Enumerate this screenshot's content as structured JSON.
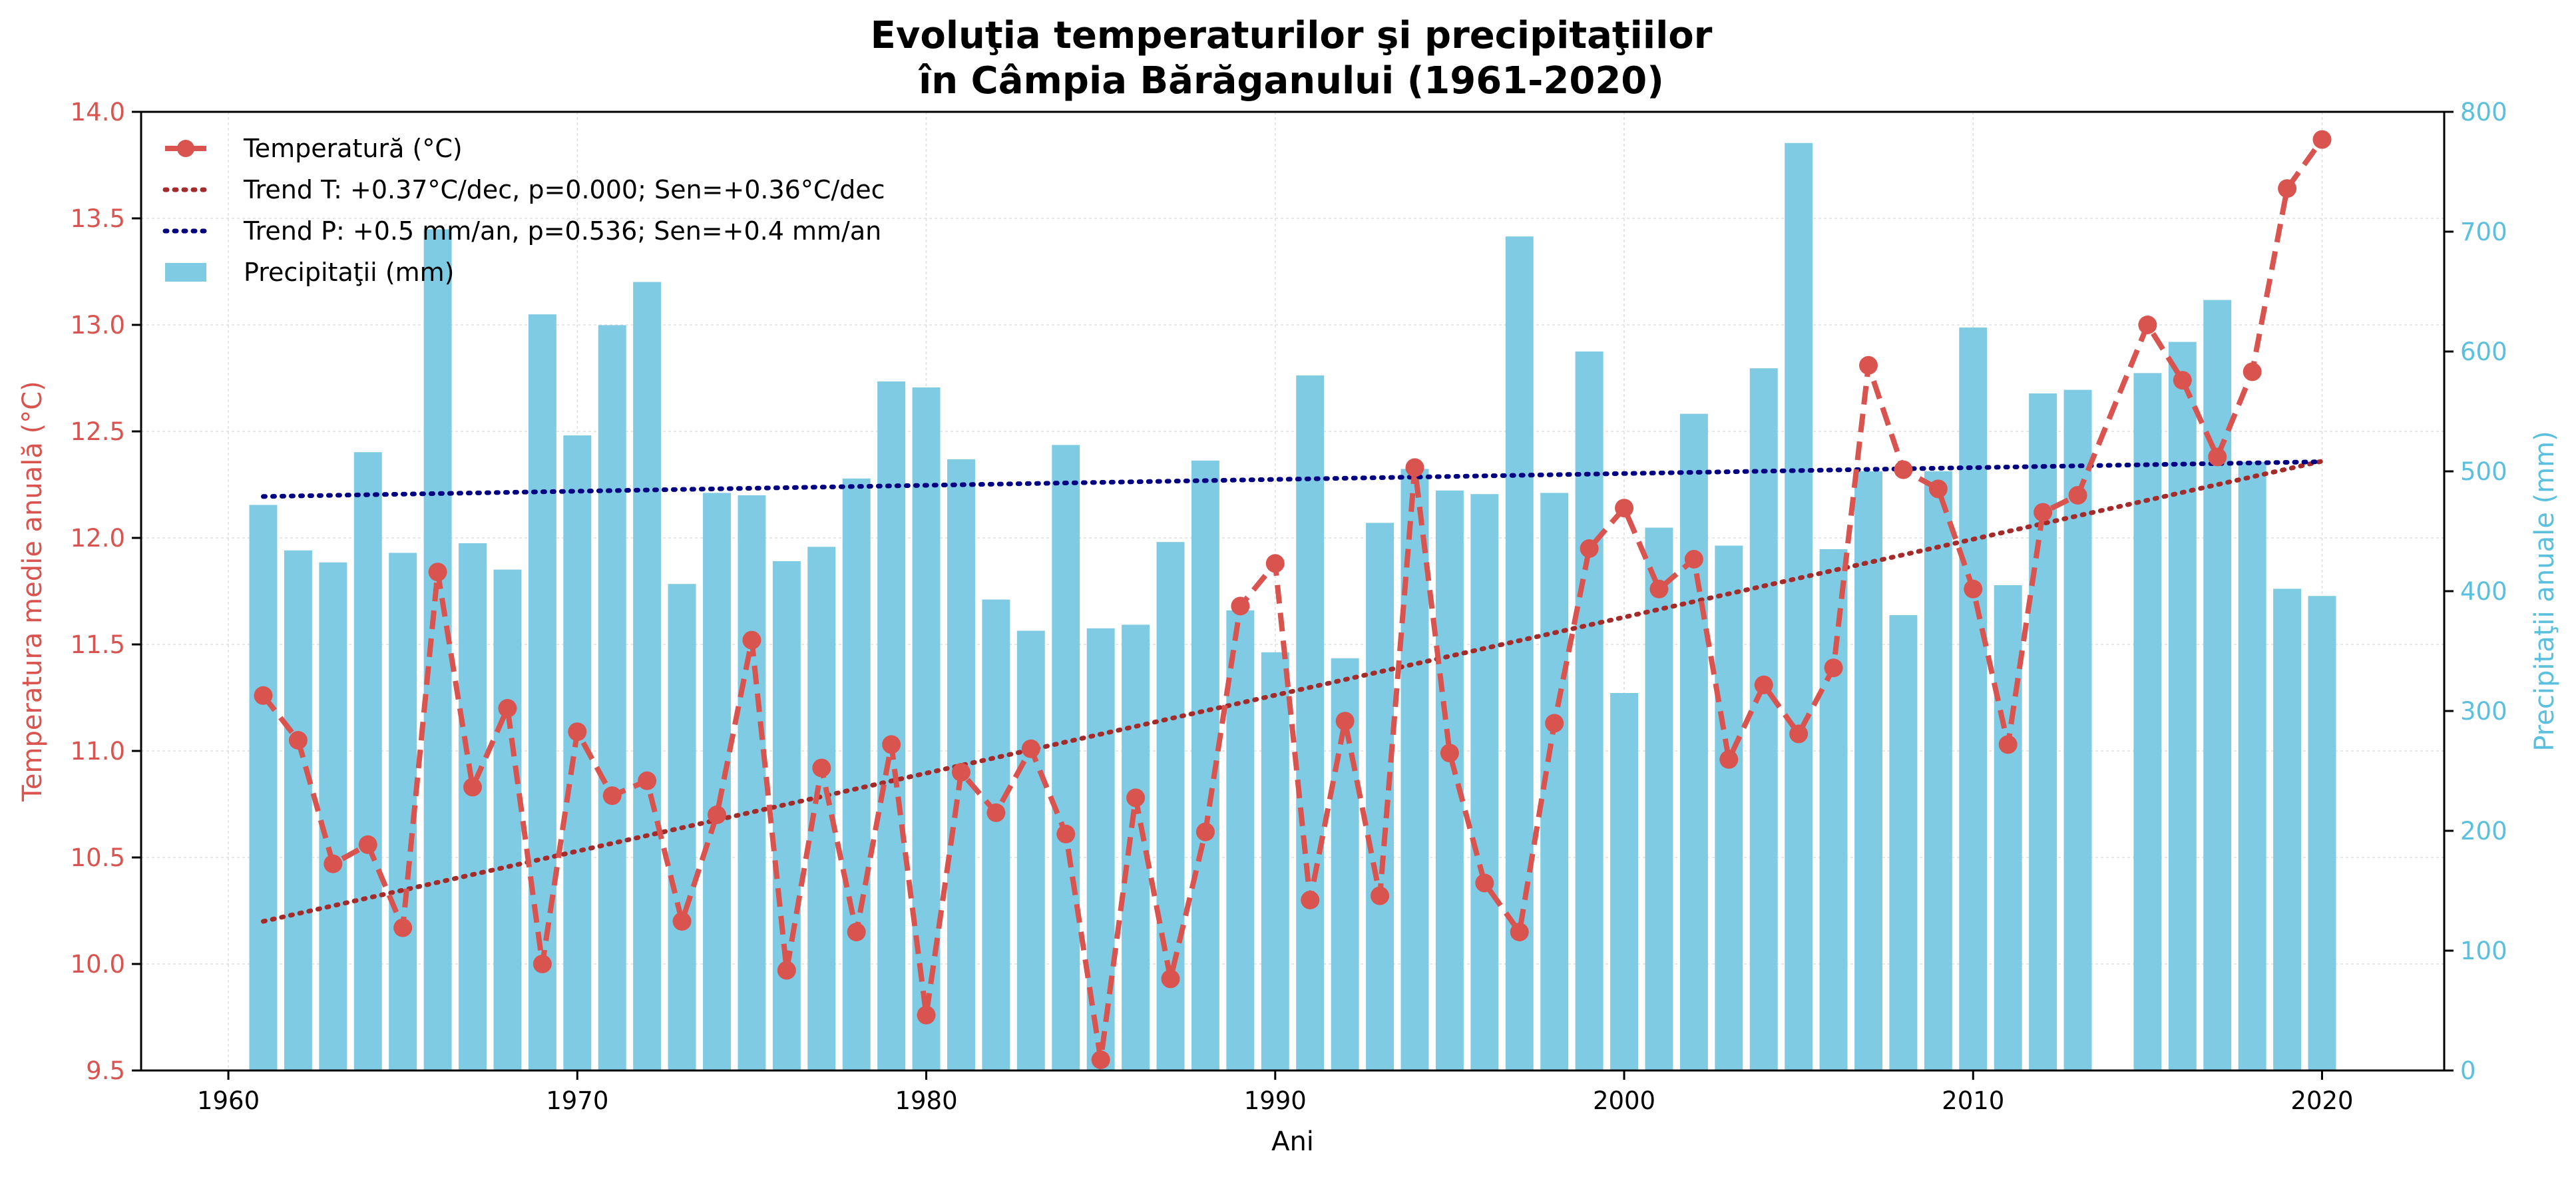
{
  "chart_data": {
    "type": "bar+line",
    "title_line1": "Evoluţia temperaturilor şi precipitaţiilor",
    "title_line2": "în Câmpia Bărăganului (1961-2020)",
    "xlabel": "Ani",
    "ylabel_left": "Temperatura medie anuală (°C)",
    "ylabel_right": "Precipitaţii anuale (mm)",
    "xlim": [
      1957.5,
      2023.5
    ],
    "ylim_left": [
      9.5,
      14.0
    ],
    "ylim_right": [
      0,
      800
    ],
    "xticks": [
      1960,
      1970,
      1980,
      1990,
      2000,
      2010,
      2020
    ],
    "yticks_left": [
      "9.5",
      "10.0",
      "10.5",
      "11.0",
      "11.5",
      "12.0",
      "12.5",
      "13.0",
      "13.5",
      "14.0"
    ],
    "yticks_right": [
      "0",
      "100",
      "200",
      "300",
      "400",
      "500",
      "600",
      "700",
      "800"
    ],
    "grid": true,
    "legend_position": "top-left",
    "colors": {
      "temperature": "#d9534f",
      "trend_t": "#a52a2a",
      "trend_p": "#000080",
      "bars": "#7ecbe3",
      "left_axis": "#d9534f",
      "right_axis": "#5bc0de"
    },
    "legend": [
      {
        "label": "Temperatură (°C)",
        "kind": "temp"
      },
      {
        "label": "Trend T: +0.37°C/dec, p=0.000; Sen=+0.36°C/dec",
        "kind": "trend_t"
      },
      {
        "label": "Trend P: +0.5 mm/an, p=0.536; Sen=+0.4 mm/an",
        "kind": "trend_p"
      },
      {
        "label": "Precipitaţii (mm)",
        "kind": "bars"
      }
    ],
    "series": [
      {
        "name": "Precipitaţii (mm)",
        "axis": "right",
        "type": "bar",
        "x": [
          1961,
          1962,
          1963,
          1964,
          1965,
          1966,
          1967,
          1968,
          1969,
          1970,
          1971,
          1972,
          1973,
          1974,
          1975,
          1976,
          1977,
          1978,
          1979,
          1980,
          1981,
          1982,
          1983,
          1984,
          1985,
          1986,
          1987,
          1988,
          1989,
          1990,
          1991,
          1992,
          1993,
          1994,
          1995,
          1996,
          1997,
          1998,
          1999,
          2000,
          2001,
          2002,
          2003,
          2004,
          2005,
          2006,
          2007,
          2008,
          2009,
          2010,
          2011,
          2012,
          2013,
          2015,
          2016,
          2017,
          2018,
          2019,
          2020
        ],
        "values": [
          472,
          434,
          424,
          516,
          432,
          702,
          440,
          418,
          631,
          530,
          622,
          658,
          406,
          482,
          480,
          425,
          437,
          494,
          575,
          570,
          510,
          393,
          367,
          522,
          369,
          372,
          441,
          509,
          384,
          349,
          580,
          344,
          457,
          502,
          484,
          481,
          696,
          482,
          600,
          315,
          453,
          548,
          438,
          586,
          774,
          435,
          500,
          380,
          500,
          620,
          405,
          565,
          568,
          582,
          608,
          643,
          508,
          402,
          396
        ]
      },
      {
        "name": "Temperatură (°C)",
        "axis": "left",
        "type": "line",
        "x": [
          1961,
          1962,
          1963,
          1964,
          1965,
          1966,
          1967,
          1968,
          1969,
          1970,
          1971,
          1972,
          1973,
          1974,
          1975,
          1976,
          1977,
          1978,
          1979,
          1980,
          1981,
          1982,
          1983,
          1984,
          1985,
          1986,
          1987,
          1988,
          1989,
          1990,
          1991,
          1992,
          1993,
          1994,
          1995,
          1996,
          1997,
          1998,
          1999,
          2000,
          2001,
          2002,
          2003,
          2004,
          2005,
          2006,
          2007,
          2008,
          2009,
          2010,
          2011,
          2012,
          2013,
          2015,
          2016,
          2017,
          2018,
          2019,
          2020
        ],
        "values": [
          11.26,
          11.05,
          10.47,
          10.56,
          10.17,
          11.84,
          10.83,
          11.2,
          10.0,
          11.09,
          10.79,
          10.86,
          10.2,
          10.7,
          11.52,
          9.97,
          10.92,
          10.15,
          11.03,
          9.76,
          10.9,
          10.71,
          11.01,
          10.61,
          9.55,
          10.78,
          9.93,
          10.62,
          11.68,
          11.88,
          10.3,
          11.14,
          10.32,
          12.33,
          10.99,
          10.38,
          10.15,
          11.13,
          11.95,
          12.14,
          11.76,
          11.9,
          10.96,
          11.31,
          11.08,
          11.39,
          12.81,
          12.32,
          12.23,
          11.76,
          11.03,
          12.12,
          12.2,
          13.0,
          12.74,
          12.38,
          12.78,
          13.64,
          13.87
        ]
      },
      {
        "name": "Trend T: +0.37°C/dec, p=0.000; Sen=+0.36°C/dec",
        "axis": "left",
        "type": "line",
        "x": [
          1961,
          2020
        ],
        "values": [
          10.2,
          12.36
        ]
      },
      {
        "name": "Trend P: +0.5 mm/an, p=0.536; Sen=+0.4 mm/an",
        "axis": "right",
        "type": "line",
        "x": [
          1961,
          2020
        ],
        "values": [
          479,
          508
        ]
      }
    ]
  }
}
